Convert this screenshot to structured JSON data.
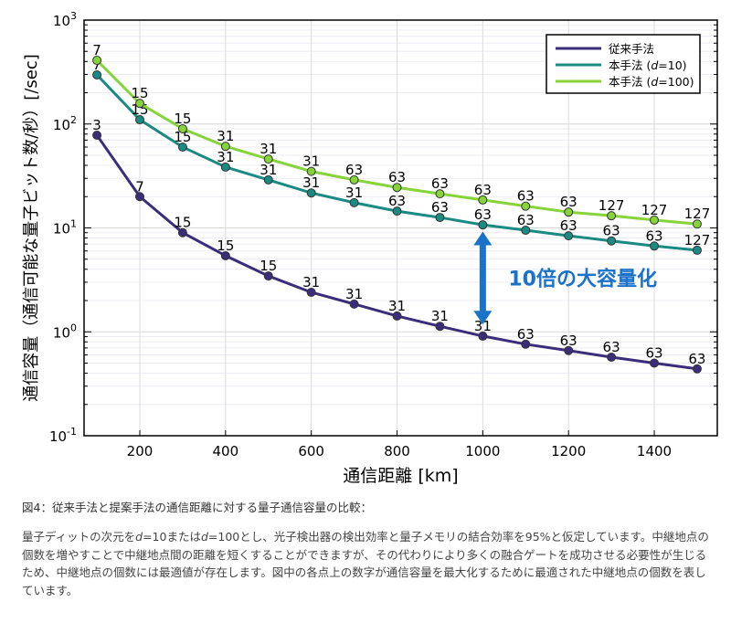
{
  "chart_data": {
    "type": "line",
    "xlabel": "通信距離 [km]",
    "ylabel": "通信容量（通信可能な量子ビット数/秒）[/sec]",
    "xlim": [
      70,
      1547
    ],
    "ylim": [
      0.1,
      1000
    ],
    "yscale": "log",
    "xticks": [
      200,
      400,
      600,
      800,
      1000,
      1200,
      1400
    ],
    "yticks": [
      {
        "base": "10",
        "exp": "-1",
        "v": 0.1
      },
      {
        "base": "10",
        "exp": "0",
        "v": 1
      },
      {
        "base": "10",
        "exp": "1",
        "v": 10
      },
      {
        "base": "10",
        "exp": "2",
        "v": 100
      },
      {
        "base": "10",
        "exp": "3",
        "v": 1000
      }
    ],
    "grid": true,
    "legend_position": "top-right",
    "x": [
      100,
      200,
      300,
      400,
      500,
      600,
      700,
      800,
      900,
      1000,
      1100,
      1200,
      1300,
      1400,
      1500
    ],
    "series": [
      {
        "name": "従来手法",
        "color": "#3b2d7a",
        "values": [
          78,
          20,
          9,
          5.4,
          3.45,
          2.4,
          1.85,
          1.42,
          1.13,
          0.91,
          0.76,
          0.66,
          0.57,
          0.5,
          0.44
        ],
        "labels": [
          "3",
          "7",
          "15",
          "15",
          "15",
          "31",
          "31",
          "31",
          "31",
          "31",
          "63",
          "63",
          "63",
          "63",
          "63"
        ]
      },
      {
        "name": "本手法 (",
        "d": "d",
        "suffix": "=10)",
        "color": "#1a8a82",
        "values": [
          297,
          110,
          60,
          38.5,
          29,
          21.7,
          17.5,
          14.5,
          12.6,
          10.7,
          9.5,
          8.4,
          7.5,
          6.7,
          6.1
        ],
        "labels": [
          "7",
          "15",
          "15",
          "31",
          "31",
          "31",
          "31",
          "63",
          "63",
          "63",
          "63",
          "63",
          "63",
          "63",
          "127"
        ]
      },
      {
        "name": "本手法 (",
        "d": "d",
        "suffix": "=100)",
        "color": "#86d33a",
        "values": [
          410,
          158,
          90,
          61,
          46,
          35,
          29,
          24.5,
          21.3,
          18.6,
          16.2,
          14.2,
          13.1,
          11.9,
          10.9
        ],
        "labels": [
          "7",
          "15",
          "15",
          "31",
          "31",
          "31",
          "63",
          "63",
          "63",
          "63",
          "63",
          "63",
          "127",
          "127",
          "127"
        ]
      }
    ],
    "annotation": {
      "text": "10倍の大容量化",
      "color": "#1a73c8",
      "x": 1000,
      "y_from": 1.0,
      "y_to": 10
    }
  },
  "caption": {
    "title": "図4：従来手法と提案手法の通信距離に対する量子通信容量の比較：",
    "p1": "量子ディットの次元を",
    "d1": "d",
    "p2": "=10または",
    "d2": "d",
    "p3": "=100とし、光子検出器の検出効率と量子メモリの結合効率を95%と仮定しています。中継地点の個数を増やすことで中継地点間の距離を短くすることができますが、その代わりにより多くの融合ゲートを成功させる必要性が生じるため、中継地点の個数には最適値が存在します。図中の各点上の数字が通信容量を最大化するために最適された中継地点の個数を表しています。"
  }
}
